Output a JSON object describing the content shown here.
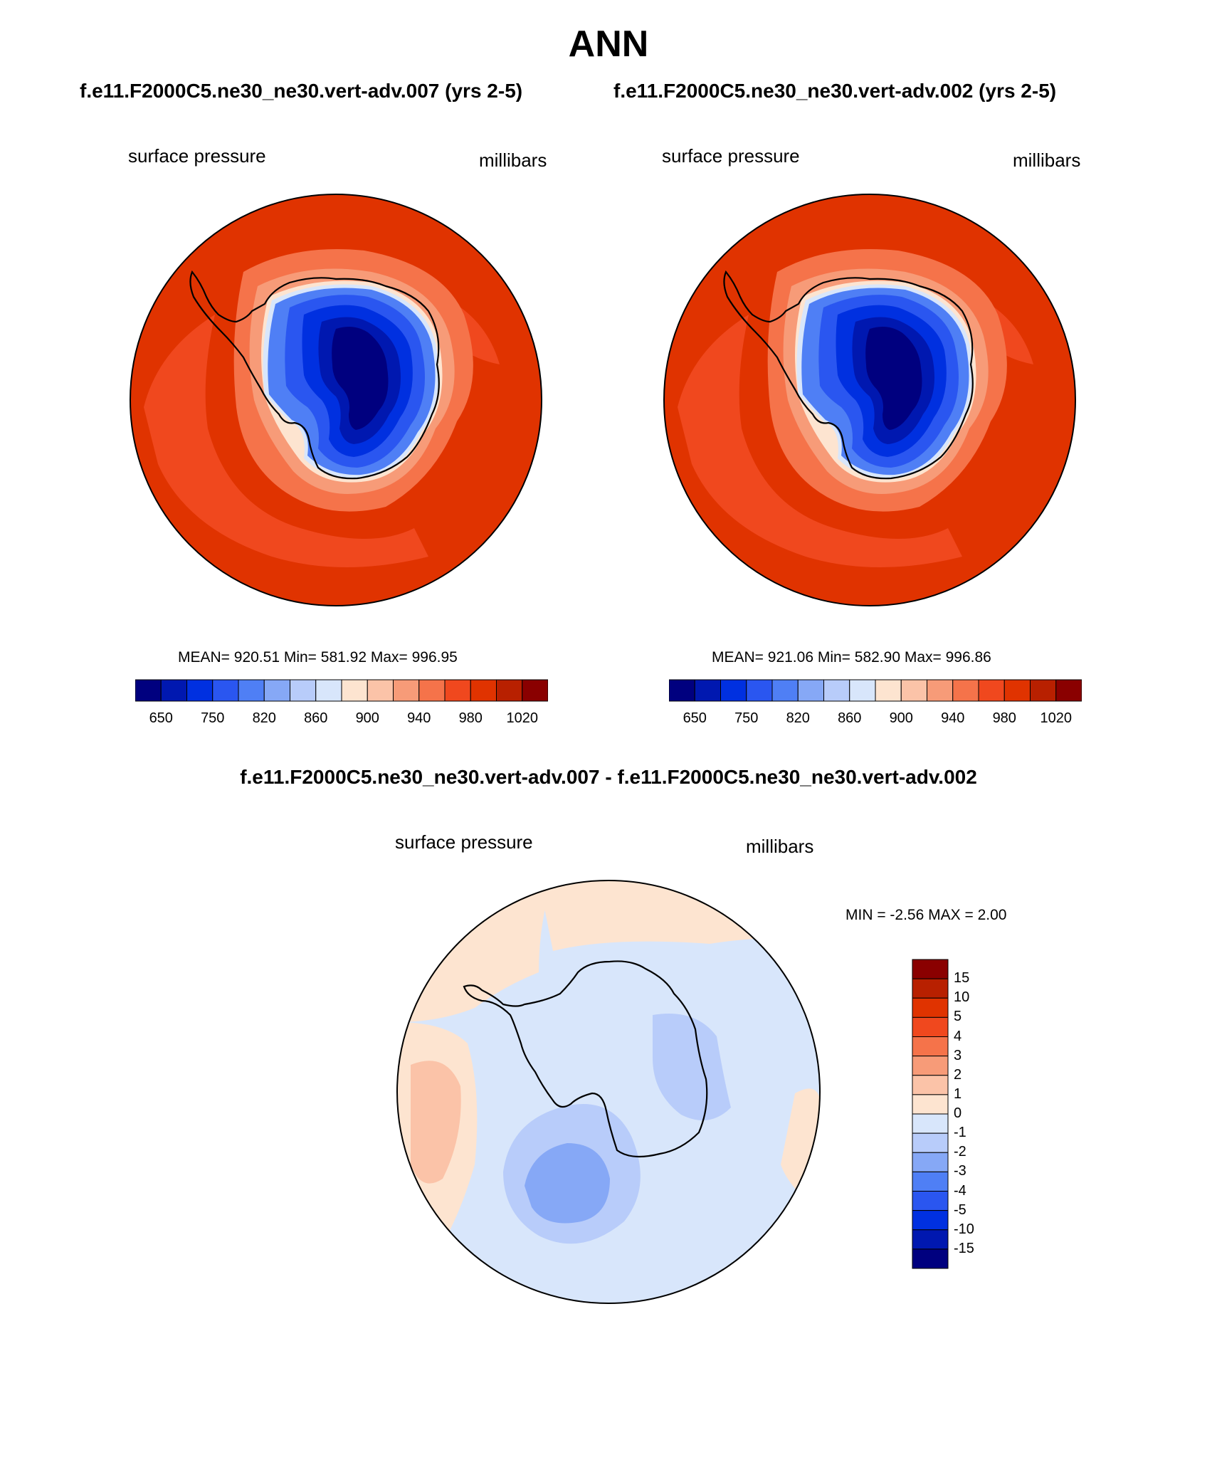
{
  "title": "ANN",
  "case_titles": [
    "f.e11.F2000C5.ne30_ne30.vert-adv.007 (yrs 2-5)",
    "f.e11.F2000C5.ne30_ne30.vert-adv.002 (yrs 2-5)"
  ],
  "panels": [
    {
      "variable": "surface pressure",
      "units": "millibars",
      "stats": "MEAN= 920.51  Min= 581.92  Max= 996.95"
    },
    {
      "variable": "surface pressure",
      "units": "millibars",
      "stats": "MEAN= 921.06  Min= 582.90  Max= 996.86"
    }
  ],
  "diff": {
    "title": "f.e11.F2000C5.ne30_ne30.vert-adv.007 - f.e11.F2000C5.ne30_ne30.vert-adv.002",
    "variable": "surface pressure",
    "units": "millibars",
    "stats": "MIN =  -2.56 MAX =   2.00"
  },
  "colorbar": {
    "colors": [
      "#00007f",
      "#0018b0",
      "#0030e0",
      "#2a56f0",
      "#4f7ff5",
      "#86a8f6",
      "#b8ccfa",
      "#d8e6fb",
      "#fde4d0",
      "#fbc3a8",
      "#f79b78",
      "#f5734a",
      "#f0481e",
      "#e03300",
      "#b82000",
      "#8a0000"
    ],
    "tick_labels": [
      "650",
      "750",
      "820",
      "860",
      "900",
      "940",
      "980",
      "1020"
    ]
  },
  "diff_colorbar": {
    "colors": [
      "#00007f",
      "#0018b0",
      "#0030e0",
      "#2a56f0",
      "#4f7ff5",
      "#86a8f6",
      "#b8ccfa",
      "#d8e6fb",
      "#fde4d0",
      "#fbc3a8",
      "#f79b78",
      "#f5734a",
      "#f0481e",
      "#e03300",
      "#b82000",
      "#8a0000"
    ],
    "tick_labels": [
      "15",
      "10",
      "5",
      "4",
      "3",
      "2",
      "1",
      "0",
      "-1",
      "-2",
      "-3",
      "-4",
      "-5",
      "-10",
      "-15"
    ]
  }
}
